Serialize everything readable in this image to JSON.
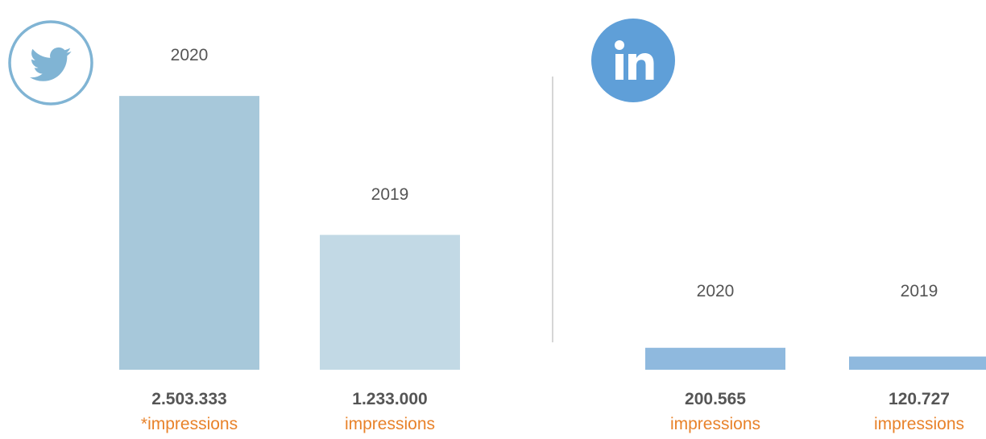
{
  "chart_data": [
    {
      "type": "bar",
      "platform_icon": "twitter-icon",
      "colors": [
        "#a7c8da",
        "#c2d9e5"
      ],
      "categories": [
        "2020",
        "2019"
      ],
      "values": [
        2503333,
        1233000
      ],
      "value_labels": [
        "2.503.333",
        "1.233.000"
      ],
      "unit_labels": [
        "*impressions",
        "impressions"
      ],
      "ylim": [
        0,
        2600000
      ]
    },
    {
      "type": "bar",
      "platform_icon": "linkedin-icon",
      "colors": [
        "#8fb9de",
        "#8fb9de"
      ],
      "categories": [
        "2020",
        "2019"
      ],
      "values": [
        200565,
        120727
      ],
      "value_labels": [
        "200.565",
        "120.727"
      ],
      "unit_labels": [
        "impressions",
        "impressions"
      ],
      "ylim": [
        0,
        2600000
      ]
    }
  ]
}
